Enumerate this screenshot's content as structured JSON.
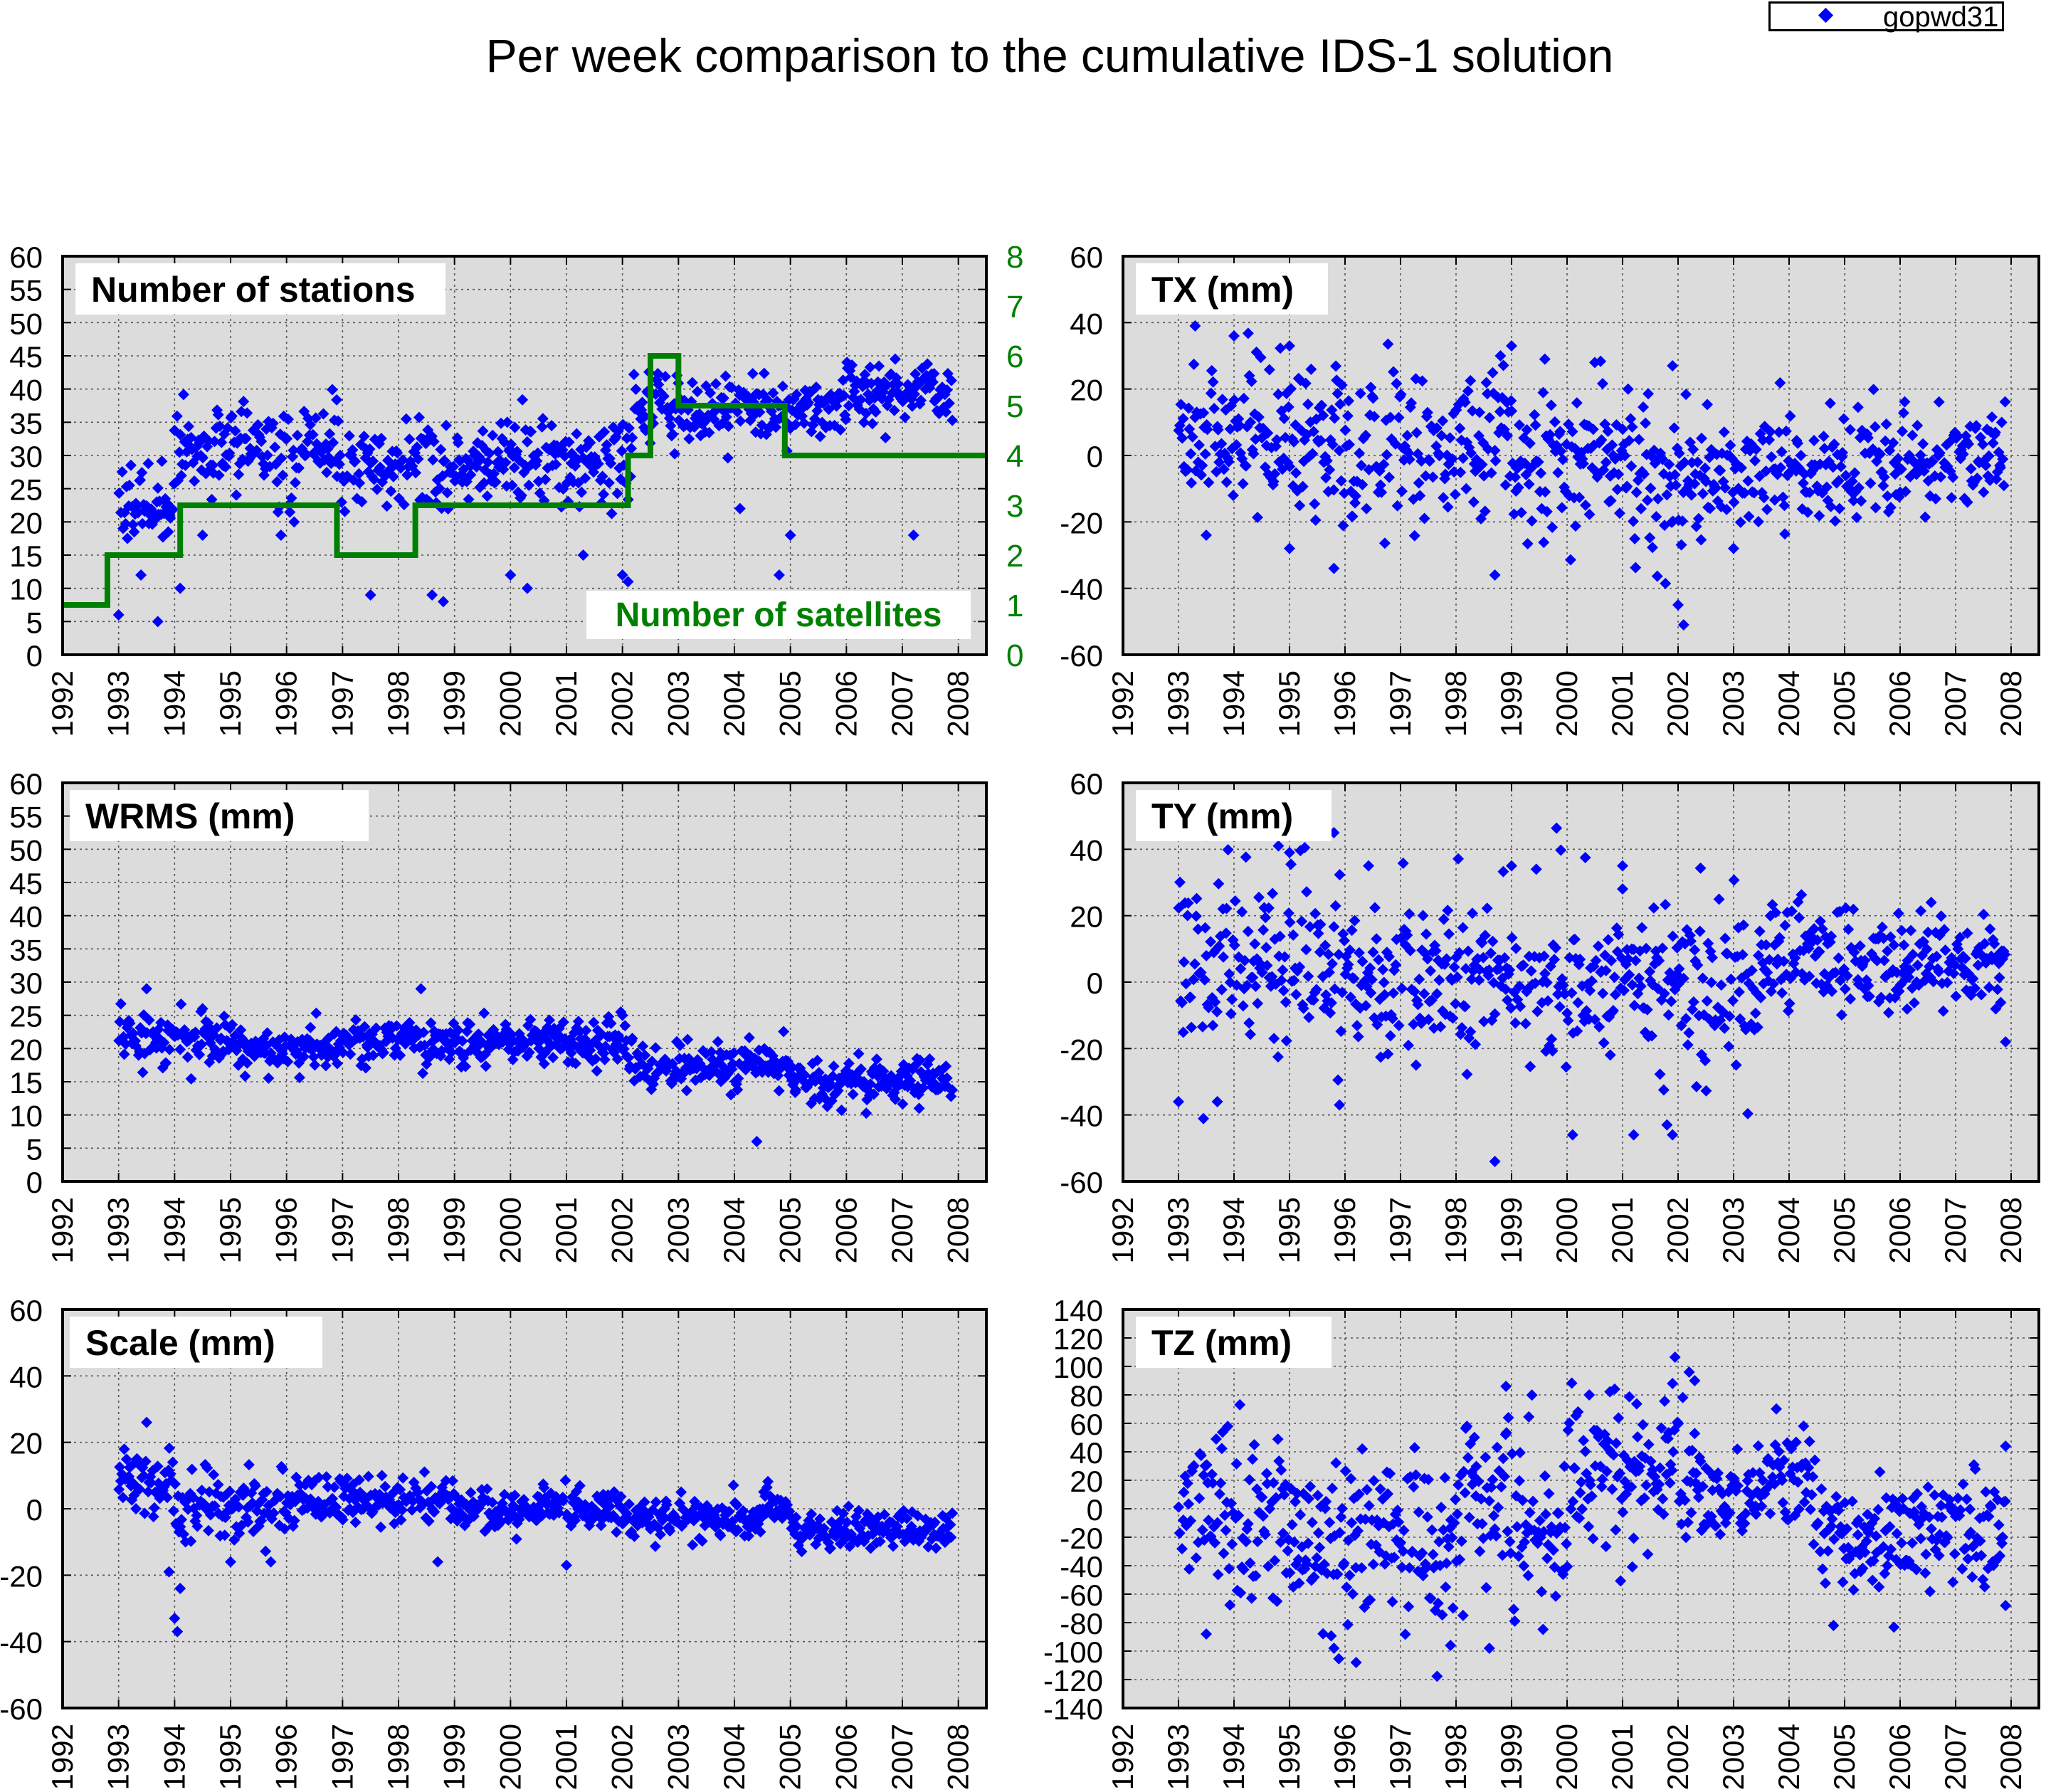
{
  "page": {
    "title": "Per week comparison to the cumulative IDS-1 solution",
    "legend": {
      "label": "gopwd31",
      "marker_color": "#0000ff",
      "marker": "diamond"
    }
  },
  "style": {
    "background": "#ffffff",
    "plot_background": "#dcdcdc",
    "point_color": "#0000ff",
    "satellite_color": "#008000",
    "grid": "dotted"
  },
  "chart_data": [
    {
      "id": "stations",
      "type": "scatter",
      "title": "Number of stations",
      "xlim": [
        1992,
        2008.5
      ],
      "xticks": [
        1992,
        1993,
        1994,
        1995,
        1996,
        1997,
        1998,
        1999,
        2000,
        2001,
        2002,
        2003,
        2004,
        2005,
        2006,
        2007,
        2008
      ],
      "ylim": [
        0,
        60
      ],
      "yticks": [
        0,
        5,
        10,
        15,
        20,
        25,
        30,
        35,
        40,
        45,
        50,
        55,
        60
      ],
      "grid": true,
      "segments": [
        {
          "x0": 1993.0,
          "x1": 1994.0,
          "mean": 23,
          "sd": 3
        },
        {
          "x0": 1994.0,
          "x1": 1996.9,
          "mean": 31,
          "sd": 3.5
        },
        {
          "x0": 1996.9,
          "x1": 1999.0,
          "mean": 28,
          "sd": 3.5
        },
        {
          "x0": 1999.0,
          "x1": 2002.2,
          "mean": 29,
          "sd": 3.5
        },
        {
          "x0": 2002.2,
          "x1": 2003.2,
          "mean": 37,
          "sd": 3
        },
        {
          "x0": 2003.2,
          "x1": 2006.0,
          "mean": 37,
          "sd": 2.5
        },
        {
          "x0": 2006.0,
          "x1": 2007.9,
          "mean": 40,
          "sd": 2.5
        }
      ],
      "outliers": [
        [
          1993.0,
          6
        ],
        [
          1993.4,
          12
        ],
        [
          1993.7,
          5
        ],
        [
          1994.1,
          10
        ],
        [
          1994.5,
          18
        ],
        [
          1995.9,
          18
        ],
        [
          1997.5,
          9
        ],
        [
          1998.6,
          9
        ],
        [
          1998.8,
          8
        ],
        [
          2000.0,
          12
        ],
        [
          2000.3,
          10
        ],
        [
          2001.3,
          15
        ],
        [
          2002.0,
          12
        ],
        [
          2002.1,
          11
        ],
        [
          2004.1,
          22
        ],
        [
          2004.8,
          12
        ],
        [
          2005.0,
          18
        ],
        [
          2007.2,
          18
        ]
      ],
      "secondary_series": {
        "name": "Number of satellites",
        "ylim": [
          0,
          8
        ],
        "yticks": [
          0,
          1,
          2,
          3,
          4,
          5,
          6,
          7,
          8
        ],
        "steps": [
          [
            1992,
            1
          ],
          [
            1992.8,
            2
          ],
          [
            1994.1,
            3
          ],
          [
            1996.9,
            2
          ],
          [
            1998.3,
            3
          ],
          [
            2002.1,
            4
          ],
          [
            2002.5,
            6
          ],
          [
            2003.0,
            5
          ],
          [
            2004.9,
            4
          ],
          [
            2008.5,
            4
          ]
        ]
      }
    },
    {
      "id": "tx",
      "type": "scatter",
      "title": "TX (mm)",
      "xlim": [
        1992,
        2008.5
      ],
      "xticks": [
        1992,
        1993,
        1994,
        1995,
        1996,
        1997,
        1998,
        1999,
        2000,
        2001,
        2002,
        2003,
        2004,
        2005,
        2006,
        2007,
        2008
      ],
      "ylim": [
        -60,
        60
      ],
      "yticks": [
        -60,
        -40,
        -20,
        0,
        20,
        40,
        60
      ],
      "grid": true,
      "segments": [
        {
          "x0": 1993.0,
          "x1": 1996.0,
          "mean": 6,
          "sd": 11
        },
        {
          "x0": 1996.0,
          "x1": 1999.0,
          "mean": 3,
          "sd": 12
        },
        {
          "x0": 1999.0,
          "x1": 2001.5,
          "mean": -2,
          "sd": 11
        },
        {
          "x0": 2001.5,
          "x1": 2002.5,
          "mean": -10,
          "sd": 12
        },
        {
          "x0": 2002.5,
          "x1": 2005.5,
          "mean": -4,
          "sd": 8
        },
        {
          "x0": 2005.5,
          "x1": 2007.9,
          "mean": -1,
          "sd": 7
        }
      ],
      "outliers": [
        [
          1993.3,
          39
        ],
        [
          1994.0,
          36
        ],
        [
          1995.0,
          33
        ],
        [
          1998.8,
          30
        ],
        [
          1999.0,
          33
        ],
        [
          1999.6,
          29
        ],
        [
          2000.5,
          28
        ],
        [
          2001.9,
          27
        ],
        [
          1995.8,
          -34
        ],
        [
          1998.7,
          -36
        ],
        [
          2002.0,
          -45
        ],
        [
          2002.1,
          -51
        ],
        [
          1993.5,
          -24
        ],
        [
          1995.0,
          -28
        ],
        [
          2003.0,
          -28
        ]
      ]
    },
    {
      "id": "wrms",
      "type": "scatter",
      "title": "WRMS (mm)",
      "xlim": [
        1992,
        2008.5
      ],
      "xticks": [
        1992,
        1993,
        1994,
        1995,
        1996,
        1997,
        1998,
        1999,
        2000,
        2001,
        2002,
        2003,
        2004,
        2005,
        2006,
        2007,
        2008
      ],
      "ylim": [
        0,
        60
      ],
      "yticks": [
        0,
        5,
        10,
        15,
        20,
        25,
        30,
        35,
        40,
        45,
        50,
        55,
        60
      ],
      "grid": true,
      "segments": [
        {
          "x0": 1993.0,
          "x1": 1995.0,
          "mean": 21.5,
          "sd": 2
        },
        {
          "x0": 1995.0,
          "x1": 1997.0,
          "mean": 20,
          "sd": 1.8
        },
        {
          "x0": 1997.0,
          "x1": 2002.2,
          "mean": 21,
          "sd": 1.8
        },
        {
          "x0": 2002.2,
          "x1": 2005.0,
          "mean": 17.5,
          "sd": 1.8
        },
        {
          "x0": 2005.0,
          "x1": 2007.9,
          "mean": 15,
          "sd": 1.8
        }
      ],
      "outliers": [
        [
          1993.5,
          29
        ],
        [
          1998.4,
          29
        ],
        [
          1994.5,
          26
        ],
        [
          2004.4,
          6
        ],
        [
          2002.0,
          25
        ],
        [
          2007.3,
          11
        ]
      ]
    },
    {
      "id": "ty",
      "type": "scatter",
      "title": "TY (mm)",
      "xlim": [
        1992,
        2008.5
      ],
      "xticks": [
        1992,
        1993,
        1994,
        1995,
        1996,
        1997,
        1998,
        1999,
        2000,
        2001,
        2002,
        2003,
        2004,
        2005,
        2006,
        2007,
        2008
      ],
      "ylim": [
        -60,
        60
      ],
      "yticks": [
        -60,
        -40,
        -20,
        0,
        20,
        40,
        60
      ],
      "grid": true,
      "segments": [
        {
          "x0": 1993.0,
          "x1": 1996.0,
          "mean": 6,
          "sd": 13
        },
        {
          "x0": 1996.0,
          "x1": 1999.0,
          "mean": 2,
          "sd": 12
        },
        {
          "x0": 1999.0,
          "x1": 2002.0,
          "mean": 0,
          "sd": 13
        },
        {
          "x0": 2002.0,
          "x1": 2003.5,
          "mean": -5,
          "sd": 13
        },
        {
          "x0": 2003.5,
          "x1": 2006.0,
          "mean": 7,
          "sd": 8
        },
        {
          "x0": 2006.0,
          "x1": 2007.9,
          "mean": 6,
          "sd": 8
        }
      ],
      "outliers": [
        [
          1993.5,
          44
        ],
        [
          1994.8,
          41
        ],
        [
          1995.0,
          39
        ],
        [
          1995.8,
          45
        ],
        [
          2001.0,
          35
        ],
        [
          1999.0,
          35
        ],
        [
          1993.0,
          -36
        ],
        [
          1993.7,
          -36
        ],
        [
          1995.9,
          -37
        ],
        [
          1998.7,
          -54
        ],
        [
          2000.1,
          -46
        ],
        [
          2001.2,
          -46
        ],
        [
          2001.9,
          -46
        ],
        [
          2001.8,
          -43
        ],
        [
          2007.9,
          -18
        ]
      ]
    },
    {
      "id": "scale",
      "type": "scatter",
      "title": "Scale (mm)",
      "xlim": [
        1992,
        2008.5
      ],
      "xticks": [
        1992,
        1993,
        1994,
        1995,
        1996,
        1997,
        1998,
        1999,
        2000,
        2001,
        2002,
        2003,
        2004,
        2005,
        2006,
        2007,
        2008
      ],
      "ylim": [
        -60,
        60
      ],
      "yticks": [
        -60,
        -40,
        -20,
        0,
        20,
        40,
        60
      ],
      "grid": true,
      "segments": [
        {
          "x0": 1993.0,
          "x1": 1994.0,
          "mean": 8,
          "sd": 5
        },
        {
          "x0": 1994.0,
          "x1": 1996.0,
          "mean": 0,
          "sd": 6
        },
        {
          "x0": 1996.0,
          "x1": 1999.0,
          "mean": 3,
          "sd": 3.5
        },
        {
          "x0": 1999.0,
          "x1": 2002.0,
          "mean": 0,
          "sd": 3.5
        },
        {
          "x0": 2002.0,
          "x1": 2004.5,
          "mean": -3,
          "sd": 3
        },
        {
          "x0": 2004.5,
          "x1": 2005.0,
          "mean": 1,
          "sd": 3
        },
        {
          "x0": 2005.0,
          "x1": 2007.9,
          "mean": -6,
          "sd": 3
        }
      ],
      "outliers": [
        [
          1993.5,
          26
        ],
        [
          1993.9,
          -19
        ],
        [
          1994.0,
          -33
        ],
        [
          1994.05,
          -37
        ],
        [
          1994.1,
          -24
        ],
        [
          1998.7,
          -16
        ],
        [
          2001.0,
          -17
        ],
        [
          1995.0,
          -16
        ]
      ]
    },
    {
      "id": "tz",
      "type": "scatter",
      "title": "TZ (mm)",
      "xlim": [
        1992,
        2008.5
      ],
      "xticks": [
        1992,
        1993,
        1994,
        1995,
        1996,
        1997,
        1998,
        1999,
        2000,
        2001,
        2002,
        2003,
        2004,
        2005,
        2006,
        2007,
        2008
      ],
      "ylim": [
        -140,
        140
      ],
      "yticks": [
        -140,
        -120,
        -100,
        -80,
        -60,
        -40,
        -20,
        0,
        20,
        40,
        60,
        80,
        100,
        120,
        140
      ],
      "grid": true,
      "segments": [
        {
          "x0": 1993.0,
          "x1": 1995.0,
          "mean": -10,
          "sd": 32
        },
        {
          "x0": 1995.0,
          "x1": 1998.0,
          "mean": -20,
          "sd": 28
        },
        {
          "x0": 1998.0,
          "x1": 2000.0,
          "mean": -5,
          "sd": 30
        },
        {
          "x0": 2000.0,
          "x1": 2002.5,
          "mean": 25,
          "sd": 28
        },
        {
          "x0": 2002.5,
          "x1": 2004.5,
          "mean": 15,
          "sd": 18
        },
        {
          "x0": 2004.5,
          "x1": 2006.0,
          "mean": -20,
          "sd": 20
        },
        {
          "x0": 2006.0,
          "x1": 2007.9,
          "mean": -15,
          "sd": 22
        }
      ],
      "outliers": [
        [
          1998.9,
          86
        ],
        [
          2000.4,
          80
        ],
        [
          2001.9,
          88
        ],
        [
          2002.2,
          96
        ],
        [
          2002.3,
          90
        ],
        [
          1995.8,
          -98
        ],
        [
          1996.2,
          -108
        ],
        [
          1997.9,
          -96
        ],
        [
          1998.6,
          -98
        ],
        [
          2004.8,
          -82
        ],
        [
          1993.5,
          -88
        ],
        [
          2007.9,
          44
        ],
        [
          2007.9,
          -68
        ]
      ]
    }
  ]
}
